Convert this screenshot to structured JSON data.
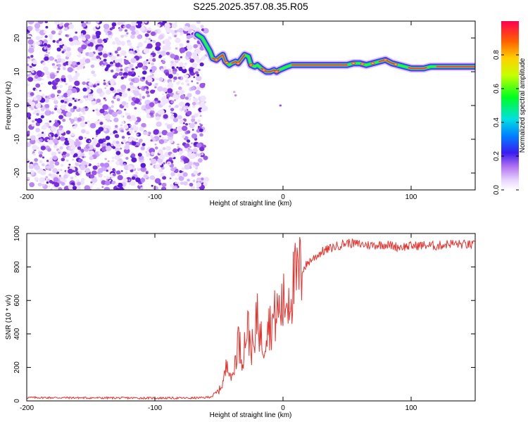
{
  "title": "S225.2025.357.08.35.R05",
  "chart_data": [
    {
      "type": "heatmap",
      "name": "spectrogram",
      "xlabel": "Height of straight line (km)",
      "ylabel": "Frequency (Hz)",
      "xlim": [
        -200,
        150
      ],
      "ylim": [
        -25,
        25
      ],
      "xticks": [
        -200,
        -100,
        0,
        100
      ],
      "yticks": [
        -20,
        -10,
        0,
        10,
        20
      ],
      "noise_region_x": [
        -200,
        -63
      ],
      "signal_ridge": {
        "x": [
          -67,
          -63,
          -60,
          -57,
          -55,
          -52,
          -49,
          -47,
          -45,
          -42,
          -40,
          -37,
          -35,
          -32,
          -30,
          -27,
          -25,
          -22,
          -20,
          -17,
          -15,
          -13,
          -10,
          -7,
          -5,
          -3,
          0,
          3,
          7,
          10,
          15,
          20,
          30,
          40,
          50,
          55,
          60,
          65,
          70,
          75,
          80,
          85,
          90,
          95,
          100,
          105,
          110,
          115,
          120,
          130,
          140,
          150
        ],
        "y": [
          21,
          20,
          18,
          16,
          14,
          13.5,
          14.5,
          15,
          13,
          12,
          12.5,
          13,
          12.5,
          14,
          15,
          14.5,
          12,
          11.5,
          12,
          11,
          10.5,
          10,
          10,
          10.5,
          10,
          10.5,
          11,
          11.5,
          12,
          12,
          12,
          12,
          12,
          12,
          12,
          12.5,
          12.5,
          12,
          12.5,
          13,
          13.5,
          12.5,
          12,
          11.5,
          11,
          11,
          11,
          11.5,
          11.5,
          11.5,
          11.5,
          11.5
        ]
      },
      "colorbar": {
        "label": "Normalized spectral amplitude",
        "range": [
          0.0,
          1.0
        ],
        "ticks": [
          0.0,
          0.2,
          0.4,
          0.6,
          0.8
        ],
        "tick_labels": [
          "0.0",
          "0.2",
          "0.4",
          "0.6",
          "0.8"
        ]
      }
    },
    {
      "type": "line",
      "name": "snr",
      "xlabel": "Height of straight line (km)",
      "ylabel": "SNR (10 * v/v)",
      "xlim": [
        -200,
        150
      ],
      "ylim": [
        0,
        1000
      ],
      "xticks": [
        -200,
        -100,
        0,
        100
      ],
      "yticks": [
        0,
        200,
        400,
        600,
        800,
        1000
      ],
      "color": "#e8322d",
      "envelope": {
        "x": [
          -200,
          -150,
          -100,
          -70,
          -60,
          -55,
          -50,
          -47,
          -45,
          -43,
          -40,
          -38,
          -35,
          -32,
          -30,
          -28,
          -25,
          -22,
          -20,
          -18,
          -15,
          -12,
          -10,
          -5,
          0,
          5,
          10,
          15,
          20,
          25,
          30,
          40,
          50,
          60,
          70,
          80,
          90,
          100,
          110,
          120,
          130,
          140,
          150
        ],
        "y": [
          20,
          18,
          17,
          17,
          20,
          30,
          60,
          110,
          170,
          260,
          120,
          200,
          380,
          250,
          340,
          450,
          330,
          300,
          580,
          390,
          330,
          500,
          450,
          520,
          570,
          640,
          720,
          780,
          830,
          860,
          890,
          920,
          945,
          935,
          930,
          935,
          920,
          925,
          930,
          925,
          940,
          935,
          930
        ]
      }
    }
  ]
}
